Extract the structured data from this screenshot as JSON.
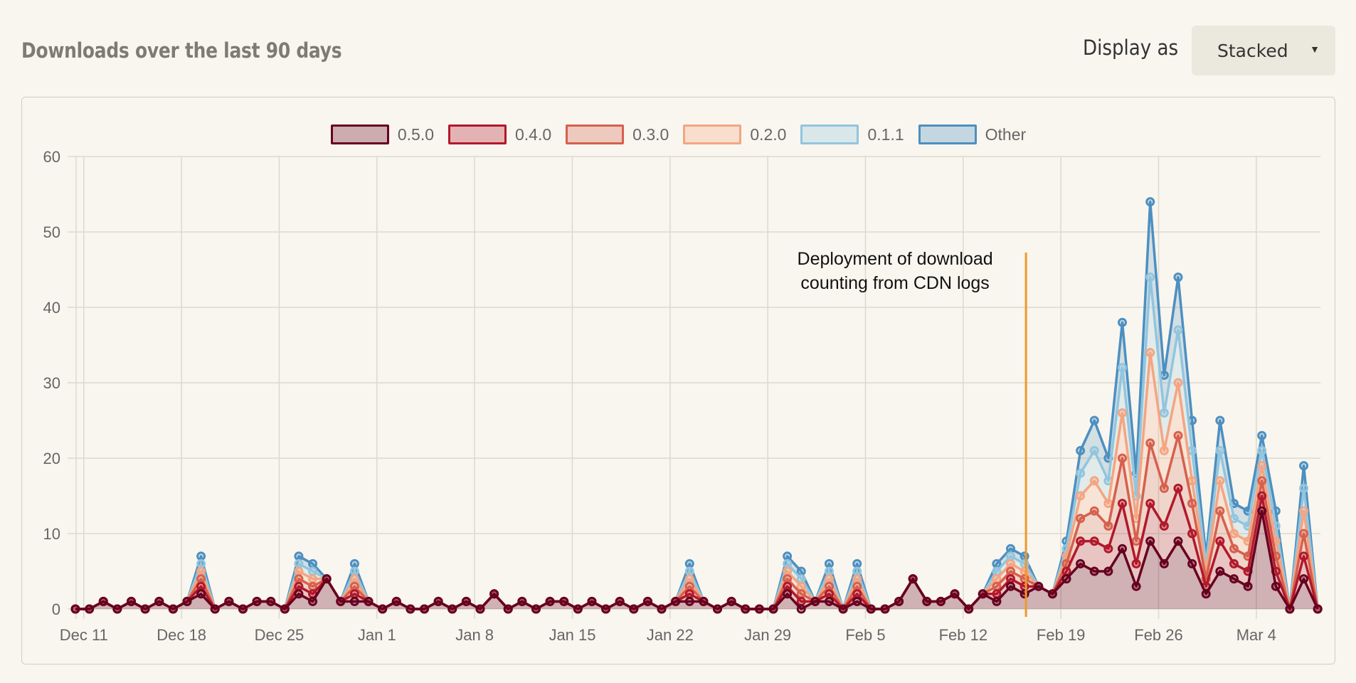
{
  "header": {
    "title": "Downloads over the last 90 days",
    "display_as_label": "Display as",
    "display_as_value": "Stacked",
    "dropdown_icon": "triangle-down-icon"
  },
  "background_color": "#f8f6ee",
  "chart_data": {
    "type": "area",
    "stacked": true,
    "legend_position": "top-center",
    "grid": true,
    "ylim": [
      0,
      60
    ],
    "y_ticks": [
      "0",
      "10",
      "20",
      "30",
      "40",
      "50",
      "60"
    ],
    "x_ticks": [
      "Dec 11",
      "Dec 18",
      "Dec 25",
      "Jan 1",
      "Jan 8",
      "Jan 15",
      "Jan 22",
      "Jan 29",
      "Feb 5",
      "Feb 12",
      "Feb 19",
      "Feb 26",
      "Mar 4"
    ],
    "x": [
      "Dec 11",
      "Dec 12",
      "Dec 13",
      "Dec 14",
      "Dec 15",
      "Dec 16",
      "Dec 17",
      "Dec 18",
      "Dec 19",
      "Dec 20",
      "Dec 21",
      "Dec 22",
      "Dec 23",
      "Dec 24",
      "Dec 25",
      "Dec 26",
      "Dec 27",
      "Dec 28",
      "Dec 29",
      "Dec 30",
      "Dec 31",
      "Jan 1",
      "Jan 2",
      "Jan 3",
      "Jan 4",
      "Jan 5",
      "Jan 6",
      "Jan 7",
      "Jan 8",
      "Jan 9",
      "Jan 10",
      "Jan 11",
      "Jan 12",
      "Jan 13",
      "Jan 14",
      "Jan 15",
      "Jan 16",
      "Jan 17",
      "Jan 18",
      "Jan 19",
      "Jan 20",
      "Jan 21",
      "Jan 22",
      "Jan 23",
      "Jan 24",
      "Jan 25",
      "Jan 26",
      "Jan 27",
      "Jan 28",
      "Jan 29",
      "Jan 30",
      "Jan 31",
      "Feb 1",
      "Feb 2",
      "Feb 3",
      "Feb 4",
      "Feb 5",
      "Feb 6",
      "Feb 7",
      "Feb 8",
      "Feb 9",
      "Feb 10",
      "Feb 11",
      "Feb 12",
      "Feb 13",
      "Feb 14",
      "Feb 15",
      "Feb 16",
      "Feb 17",
      "Feb 18",
      "Feb 19",
      "Feb 20",
      "Feb 21",
      "Feb 22",
      "Feb 23",
      "Feb 24",
      "Feb 25",
      "Feb 26",
      "Feb 27",
      "Feb 28",
      "Feb 29",
      "Mar 1",
      "Mar 2",
      "Mar 3",
      "Mar 4",
      "Mar 5",
      "Mar 6",
      "Mar 7",
      "Mar 8",
      "Mar 9"
    ],
    "series": [
      {
        "name": "0.5.0",
        "color": "#67001f",
        "values": [
          0,
          0,
          1,
          0,
          1,
          0,
          1,
          0,
          1,
          2,
          0,
          1,
          0,
          1,
          1,
          0,
          2,
          1,
          4,
          1,
          1,
          1,
          0,
          1,
          0,
          0,
          1,
          0,
          1,
          0,
          2,
          0,
          1,
          0,
          1,
          1,
          0,
          1,
          0,
          1,
          0,
          1,
          0,
          1,
          1,
          1,
          0,
          1,
          0,
          0,
          0,
          2,
          0,
          1,
          1,
          0,
          1,
          0,
          0,
          1,
          4,
          1,
          1,
          2,
          0,
          2,
          1,
          3,
          2,
          3,
          2,
          4,
          6,
          5,
          5,
          8,
          3,
          9,
          6,
          9,
          6,
          2,
          5,
          4,
          3,
          13,
          3,
          0,
          4,
          0
        ]
      },
      {
        "name": "0.4.0",
        "color": "#b2182b",
        "values": [
          0,
          0,
          0,
          0,
          0,
          0,
          0,
          0,
          0,
          1,
          0,
          0,
          0,
          0,
          0,
          0,
          1,
          1,
          0,
          0,
          1,
          0,
          0,
          0,
          0,
          0,
          0,
          0,
          0,
          0,
          0,
          0,
          0,
          0,
          0,
          0,
          0,
          0,
          0,
          0,
          0,
          0,
          0,
          0,
          1,
          0,
          0,
          0,
          0,
          0,
          0,
          1,
          1,
          0,
          1,
          0,
          1,
          0,
          0,
          0,
          0,
          0,
          0,
          0,
          0,
          0,
          1,
          1,
          1,
          0,
          0,
          1,
          3,
          4,
          3,
          6,
          3,
          5,
          5,
          7,
          4,
          1,
          4,
          2,
          2,
          2,
          2,
          0,
          3,
          0
        ]
      },
      {
        "name": "0.3.0",
        "color": "#d6604d",
        "values": [
          0,
          0,
          0,
          0,
          0,
          0,
          0,
          0,
          0,
          1,
          0,
          0,
          0,
          0,
          0,
          0,
          1,
          1,
          0,
          0,
          1,
          0,
          0,
          0,
          0,
          0,
          0,
          0,
          0,
          0,
          0,
          0,
          0,
          0,
          0,
          0,
          0,
          0,
          0,
          0,
          0,
          0,
          0,
          0,
          1,
          0,
          0,
          0,
          0,
          0,
          0,
          1,
          1,
          0,
          1,
          0,
          1,
          0,
          0,
          0,
          0,
          0,
          0,
          0,
          0,
          0,
          1,
          1,
          1,
          0,
          0,
          1,
          3,
          4,
          3,
          6,
          3,
          8,
          5,
          7,
          4,
          1,
          4,
          2,
          2,
          2,
          2,
          0,
          3,
          0
        ]
      },
      {
        "name": "0.2.0",
        "color": "#f4a582",
        "values": [
          0,
          0,
          0,
          0,
          0,
          0,
          0,
          0,
          0,
          1,
          0,
          0,
          0,
          0,
          0,
          0,
          1,
          1,
          0,
          0,
          1,
          0,
          0,
          0,
          0,
          0,
          0,
          0,
          0,
          0,
          0,
          0,
          0,
          0,
          0,
          0,
          0,
          0,
          0,
          0,
          0,
          0,
          0,
          0,
          1,
          0,
          0,
          0,
          0,
          0,
          0,
          1,
          1,
          0,
          1,
          0,
          1,
          0,
          0,
          0,
          0,
          0,
          0,
          0,
          0,
          0,
          1,
          1,
          1,
          0,
          0,
          1,
          3,
          4,
          3,
          6,
          3,
          12,
          5,
          7,
          3,
          1,
          4,
          2,
          2,
          2,
          2,
          0,
          3,
          0
        ]
      },
      {
        "name": "0.1.1",
        "color": "#92c5de",
        "values": [
          0,
          0,
          0,
          0,
          0,
          0,
          0,
          0,
          0,
          1,
          0,
          0,
          0,
          0,
          0,
          0,
          1,
          1,
          0,
          0,
          1,
          0,
          0,
          0,
          0,
          0,
          0,
          0,
          0,
          0,
          0,
          0,
          0,
          0,
          0,
          0,
          0,
          0,
          0,
          0,
          0,
          0,
          0,
          0,
          1,
          0,
          0,
          0,
          0,
          0,
          0,
          1,
          1,
          0,
          1,
          0,
          1,
          0,
          0,
          0,
          0,
          0,
          0,
          0,
          0,
          0,
          1,
          1,
          1,
          0,
          0,
          1,
          3,
          4,
          3,
          6,
          3,
          10,
          5,
          7,
          4,
          1,
          4,
          2,
          2,
          2,
          2,
          0,
          3,
          0
        ]
      },
      {
        "name": "Other",
        "color": "#4d8fc1",
        "values": [
          0,
          0,
          0,
          0,
          0,
          0,
          0,
          0,
          0,
          1,
          0,
          0,
          0,
          0,
          0,
          0,
          1,
          1,
          0,
          0,
          1,
          0,
          0,
          0,
          0,
          0,
          0,
          0,
          0,
          0,
          0,
          0,
          0,
          0,
          0,
          0,
          0,
          0,
          0,
          0,
          0,
          0,
          0,
          0,
          1,
          0,
          0,
          0,
          0,
          0,
          0,
          1,
          1,
          0,
          1,
          0,
          1,
          0,
          0,
          0,
          0,
          0,
          0,
          0,
          0,
          0,
          1,
          1,
          1,
          0,
          0,
          1,
          3,
          4,
          3,
          6,
          3,
          10,
          5,
          7,
          4,
          1,
          4,
          2,
          2,
          2,
          2,
          0,
          3,
          0
        ]
      }
    ],
    "annotations": [
      {
        "date": "Feb 17",
        "color": "#f0962e",
        "line1": "Deployment of download",
        "line2": "counting from CDN logs"
      }
    ]
  }
}
